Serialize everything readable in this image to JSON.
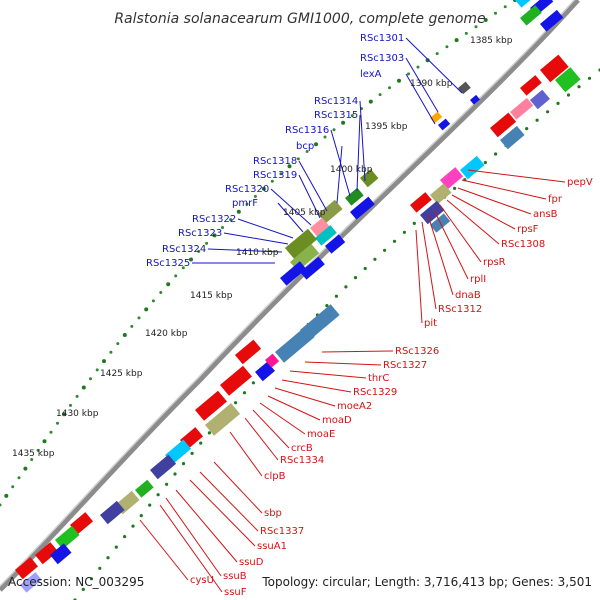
{
  "title": "Ralstonia solanacearum GMI1000, complete genome",
  "footer": {
    "accession": "Accession: NC_003295",
    "stats": "Topology: circular; Length: 3,716,413 bp; Genes: 3,501"
  },
  "colors": {
    "backbone": "#8c8c8c",
    "forward": "#0a14e6",
    "reverse": "#e60a0a",
    "label_forward": "#1414c8",
    "label_reverse": "#d21414",
    "tick_major": "#1f7a1f",
    "tick_minor": "#2e8b2e"
  },
  "kbp_markers": [
    "1385 kbp",
    "1390 kbp",
    "1395 kbp",
    "1400 kbp",
    "1405 kbp",
    "1410 kbp",
    "1415 kbp",
    "1420 kbp",
    "1425 kbp",
    "1430 kbp",
    "1435 kbp"
  ],
  "forward_labels": [
    "RSc1301",
    "RSc1303",
    "lexA",
    "RSc1314",
    "RSc1315",
    "RSc1316",
    "bcp",
    "RSc1318",
    "RSc1319",
    "RSc1320",
    "pmrF",
    "RSc1322",
    "RSc1323",
    "RSc1324",
    "RSc1325"
  ],
  "reverse_labels_right": [
    "pepV",
    "fpr",
    "ansB",
    "rpsF",
    "RSc1308",
    "rpsR",
    "rplI",
    "dnaB",
    "RSc1312",
    "pit"
  ],
  "reverse_labels_lower": [
    "RSc1326",
    "RSc1327",
    "thrC",
    "RSc1329",
    "moeA2",
    "moaD",
    "moaE",
    "crcB",
    "RSc1334",
    "clpB",
    "sbp",
    "RSc1337",
    "ssuA1",
    "ssuD",
    "ssuB",
    "ssuF",
    "cysU"
  ]
}
